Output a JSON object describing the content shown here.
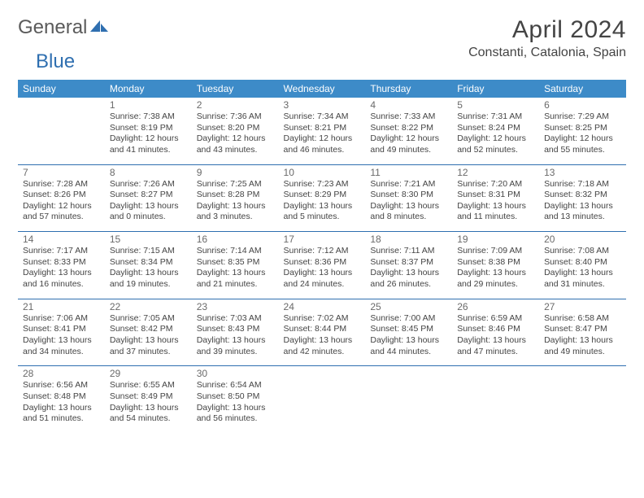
{
  "brand": {
    "word1": "General",
    "word2": "Blue"
  },
  "title": "April 2024",
  "location": "Constanti, Catalonia, Spain",
  "dow_labels": [
    "Sunday",
    "Monday",
    "Tuesday",
    "Wednesday",
    "Thursday",
    "Friday",
    "Saturday"
  ],
  "colors": {
    "header_bg": "#3d8bc8",
    "header_text": "#ffffff",
    "rule": "#2f6fb0",
    "body_text": "#444444",
    "daynum_text": "#6a6a6a",
    "logo_gray": "#5a5a5a",
    "logo_blue": "#2f6fb0",
    "page_bg": "#ffffff"
  },
  "fonts": {
    "title_size_pt": 22,
    "location_size_pt": 12,
    "dow_size_pt": 9,
    "daynum_size_pt": 9,
    "body_size_pt": 8
  },
  "layout": {
    "columns": 7,
    "rows": 5,
    "first_weekday_offset": 1
  },
  "days": [
    {
      "n": 1,
      "sunrise": "7:38 AM",
      "sunset": "8:19 PM",
      "daylight": "12 hours and 41 minutes."
    },
    {
      "n": 2,
      "sunrise": "7:36 AM",
      "sunset": "8:20 PM",
      "daylight": "12 hours and 43 minutes."
    },
    {
      "n": 3,
      "sunrise": "7:34 AM",
      "sunset": "8:21 PM",
      "daylight": "12 hours and 46 minutes."
    },
    {
      "n": 4,
      "sunrise": "7:33 AM",
      "sunset": "8:22 PM",
      "daylight": "12 hours and 49 minutes."
    },
    {
      "n": 5,
      "sunrise": "7:31 AM",
      "sunset": "8:24 PM",
      "daylight": "12 hours and 52 minutes."
    },
    {
      "n": 6,
      "sunrise": "7:29 AM",
      "sunset": "8:25 PM",
      "daylight": "12 hours and 55 minutes."
    },
    {
      "n": 7,
      "sunrise": "7:28 AM",
      "sunset": "8:26 PM",
      "daylight": "12 hours and 57 minutes."
    },
    {
      "n": 8,
      "sunrise": "7:26 AM",
      "sunset": "8:27 PM",
      "daylight": "13 hours and 0 minutes."
    },
    {
      "n": 9,
      "sunrise": "7:25 AM",
      "sunset": "8:28 PM",
      "daylight": "13 hours and 3 minutes."
    },
    {
      "n": 10,
      "sunrise": "7:23 AM",
      "sunset": "8:29 PM",
      "daylight": "13 hours and 5 minutes."
    },
    {
      "n": 11,
      "sunrise": "7:21 AM",
      "sunset": "8:30 PM",
      "daylight": "13 hours and 8 minutes."
    },
    {
      "n": 12,
      "sunrise": "7:20 AM",
      "sunset": "8:31 PM",
      "daylight": "13 hours and 11 minutes."
    },
    {
      "n": 13,
      "sunrise": "7:18 AM",
      "sunset": "8:32 PM",
      "daylight": "13 hours and 13 minutes."
    },
    {
      "n": 14,
      "sunrise": "7:17 AM",
      "sunset": "8:33 PM",
      "daylight": "13 hours and 16 minutes."
    },
    {
      "n": 15,
      "sunrise": "7:15 AM",
      "sunset": "8:34 PM",
      "daylight": "13 hours and 19 minutes."
    },
    {
      "n": 16,
      "sunrise": "7:14 AM",
      "sunset": "8:35 PM",
      "daylight": "13 hours and 21 minutes."
    },
    {
      "n": 17,
      "sunrise": "7:12 AM",
      "sunset": "8:36 PM",
      "daylight": "13 hours and 24 minutes."
    },
    {
      "n": 18,
      "sunrise": "7:11 AM",
      "sunset": "8:37 PM",
      "daylight": "13 hours and 26 minutes."
    },
    {
      "n": 19,
      "sunrise": "7:09 AM",
      "sunset": "8:38 PM",
      "daylight": "13 hours and 29 minutes."
    },
    {
      "n": 20,
      "sunrise": "7:08 AM",
      "sunset": "8:40 PM",
      "daylight": "13 hours and 31 minutes."
    },
    {
      "n": 21,
      "sunrise": "7:06 AM",
      "sunset": "8:41 PM",
      "daylight": "13 hours and 34 minutes."
    },
    {
      "n": 22,
      "sunrise": "7:05 AM",
      "sunset": "8:42 PM",
      "daylight": "13 hours and 37 minutes."
    },
    {
      "n": 23,
      "sunrise": "7:03 AM",
      "sunset": "8:43 PM",
      "daylight": "13 hours and 39 minutes."
    },
    {
      "n": 24,
      "sunrise": "7:02 AM",
      "sunset": "8:44 PM",
      "daylight": "13 hours and 42 minutes."
    },
    {
      "n": 25,
      "sunrise": "7:00 AM",
      "sunset": "8:45 PM",
      "daylight": "13 hours and 44 minutes."
    },
    {
      "n": 26,
      "sunrise": "6:59 AM",
      "sunset": "8:46 PM",
      "daylight": "13 hours and 47 minutes."
    },
    {
      "n": 27,
      "sunrise": "6:58 AM",
      "sunset": "8:47 PM",
      "daylight": "13 hours and 49 minutes."
    },
    {
      "n": 28,
      "sunrise": "6:56 AM",
      "sunset": "8:48 PM",
      "daylight": "13 hours and 51 minutes."
    },
    {
      "n": 29,
      "sunrise": "6:55 AM",
      "sunset": "8:49 PM",
      "daylight": "13 hours and 54 minutes."
    },
    {
      "n": 30,
      "sunrise": "6:54 AM",
      "sunset": "8:50 PM",
      "daylight": "13 hours and 56 minutes."
    }
  ],
  "labels": {
    "sunrise_prefix": "Sunrise: ",
    "sunset_prefix": "Sunset: ",
    "daylight_prefix": "Daylight: "
  }
}
